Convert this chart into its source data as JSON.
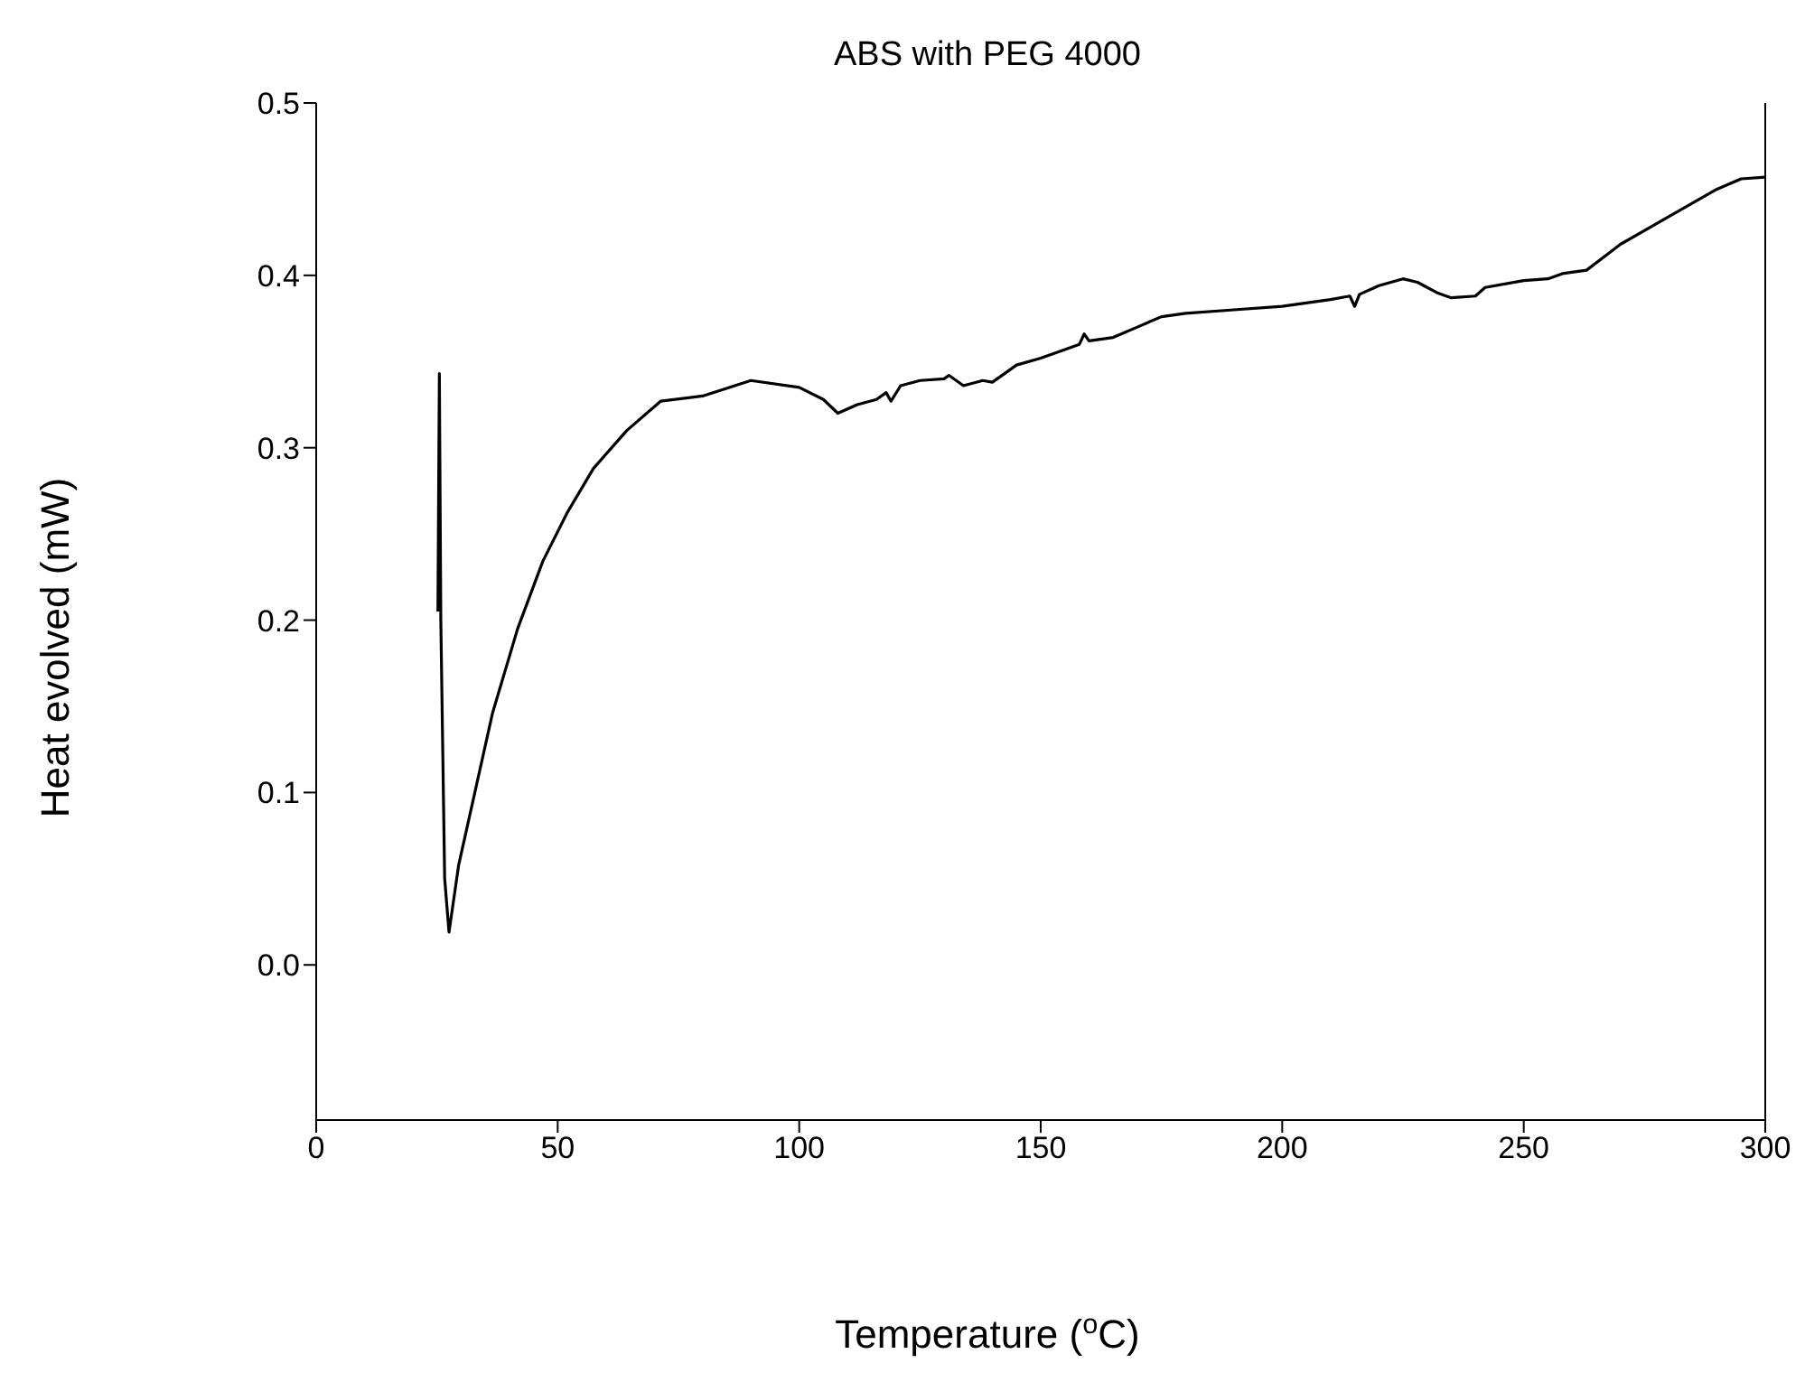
{
  "chart_data": {
    "type": "line",
    "title": "ABS with PEG 4000",
    "xlabel": "Temperature ($^{o}$C)",
    "ylabel": "Heat evolved (mW)",
    "xlim": [
      0,
      300
    ],
    "xticks": [
      0,
      50,
      100,
      150,
      200,
      250,
      300
    ],
    "ylim": [
      -0.09,
      0.5
    ],
    "yticks": [
      {
        "value": 0,
        "label": "0.0"
      },
      {
        "value": 0.1,
        "label": "0.1"
      },
      {
        "value": 0.2,
        "label": "0.2"
      },
      {
        "value": 0.3,
        "label": "0.3"
      },
      {
        "value": 0.4,
        "label": "0.4"
      },
      {
        "value": 0.5,
        "label": "0.5"
      }
    ],
    "grid": false,
    "legend": false,
    "marker": "none",
    "line_style": "solid",
    "series": [
      {
        "color": "#000000",
        "x": [
          25.2,
          25.5,
          25.8,
          26.6,
          27.5,
          29.5,
          33,
          36.5,
          41.7,
          46.9,
          52.1,
          57.4,
          64.3,
          71.3,
          80,
          90,
          100,
          105,
          108,
          112,
          116,
          118,
          119,
          121,
          125,
          130,
          131,
          134,
          138,
          140,
          145,
          150,
          155,
          158,
          159,
          160,
          165,
          170,
          175,
          180,
          190,
          200,
          210,
          214,
          215,
          216,
          220,
          225,
          228,
          232,
          235,
          240,
          242,
          250,
          255,
          258,
          263,
          270,
          280,
          290,
          295,
          300
        ],
        "values": [
          0.205,
          0.343,
          0.2,
          0.05,
          0.019,
          0.058,
          0.102,
          0.146,
          0.195,
          0.234,
          0.263,
          0.288,
          0.31,
          0.327,
          0.33,
          0.339,
          0.335,
          0.328,
          0.32,
          0.325,
          0.328,
          0.332,
          0.327,
          0.336,
          0.339,
          0.34,
          0.342,
          0.336,
          0.339,
          0.338,
          0.348,
          0.352,
          0.357,
          0.36,
          0.366,
          0.362,
          0.364,
          0.37,
          0.376,
          0.378,
          0.38,
          0.382,
          0.386,
          0.388,
          0.382,
          0.389,
          0.394,
          0.398,
          0.396,
          0.39,
          0.387,
          0.388,
          0.393,
          0.397,
          0.398,
          0.401,
          0.403,
          0.418,
          0.434,
          0.45,
          0.456,
          0.457
        ]
      }
    ]
  }
}
